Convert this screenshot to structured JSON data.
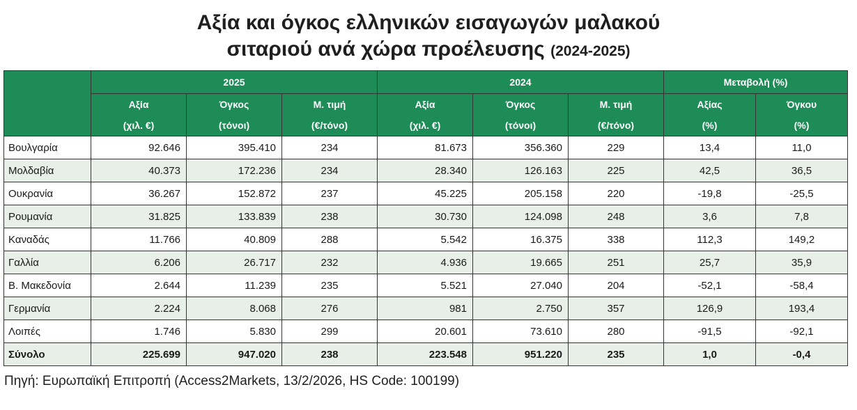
{
  "title": {
    "line1": "Αξία και όγκος ελληνικών εισαγωγών μαλακού",
    "line2": "σιταριού ανά χώρα προέλευσης",
    "years": "(2024-2025)"
  },
  "header": {
    "group_2025": "2025",
    "group_2024": "2024",
    "group_change": "Μεταβολή (%)",
    "value": "Αξία",
    "volume": "Όγκος",
    "avg_price": "Μ. τιμή",
    "value_unit": "(χιλ. €)",
    "volume_unit": "(τόνοι)",
    "price_unit": "(€/τόνο)",
    "change_value": "Αξίας",
    "change_volume": "Όγκου",
    "pct_unit": "(%)"
  },
  "rows": [
    {
      "country": "Βουλγαρία",
      "v25": "92.646",
      "q25": "395.410",
      "p25": "234",
      "v24": "81.673",
      "q24": "356.360",
      "p24": "229",
      "cv": "13,4",
      "cq": "11,0"
    },
    {
      "country": "Μολδαβία",
      "v25": "40.373",
      "q25": "172.236",
      "p25": "234",
      "v24": "28.340",
      "q24": "126.163",
      "p24": "225",
      "cv": "42,5",
      "cq": "36,5"
    },
    {
      "country": "Ουκρανία",
      "v25": "36.267",
      "q25": "152.872",
      "p25": "237",
      "v24": "45.225",
      "q24": "205.158",
      "p24": "220",
      "cv": "-19,8",
      "cq": "-25,5"
    },
    {
      "country": "Ρουμανία",
      "v25": "31.825",
      "q25": "133.839",
      "p25": "238",
      "v24": "30.730",
      "q24": "124.098",
      "p24": "248",
      "cv": "3,6",
      "cq": "7,8"
    },
    {
      "country": "Καναδάς",
      "v25": "11.766",
      "q25": "40.809",
      "p25": "288",
      "v24": "5.542",
      "q24": "16.375",
      "p24": "338",
      "cv": "112,3",
      "cq": "149,2"
    },
    {
      "country": "Γαλλία",
      "v25": "6.206",
      "q25": "26.717",
      "p25": "232",
      "v24": "4.936",
      "q24": "19.665",
      "p24": "251",
      "cv": "25,7",
      "cq": "35,9"
    },
    {
      "country": "Β. Μακεδονία",
      "v25": "2.644",
      "q25": "11.239",
      "p25": "235",
      "v24": "5.521",
      "q24": "27.040",
      "p24": "204",
      "cv": "-52,1",
      "cq": "-58,4"
    },
    {
      "country": "Γερμανία",
      "v25": "2.224",
      "q25": "8.068",
      "p25": "276",
      "v24": "981",
      "q24": "2.750",
      "p24": "357",
      "cv": "126,9",
      "cq": "193,4"
    },
    {
      "country": "Λοιπές",
      "v25": "1.746",
      "q25": "5.830",
      "p25": "299",
      "v24": "20.601",
      "q24": "73.610",
      "p24": "280",
      "cv": "-91,5",
      "cq": "-92,1"
    }
  ],
  "total": {
    "country": "Σύνολο",
    "v25": "225.699",
    "q25": "947.020",
    "p25": "238",
    "v24": "223.548",
    "q24": "951.220",
    "p24": "235",
    "cv": "1,0",
    "cq": "-0,4"
  },
  "source": "Πηγή: Ευρωπαϊκή Επιτροπή (Access2Markets, 13/2/2026, HS Code: 100199)",
  "colors": {
    "header_green": "#1e8c57",
    "stripe": "#e8efe9"
  }
}
